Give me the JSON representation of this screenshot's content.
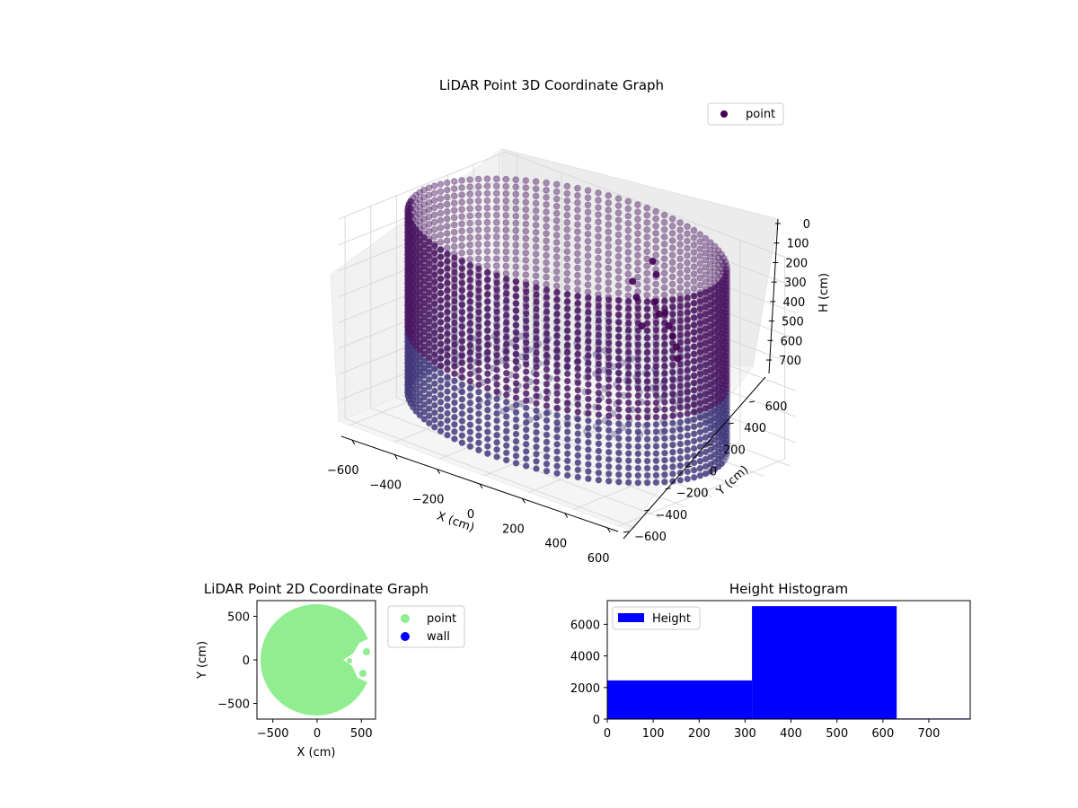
{
  "chart_data": [
    {
      "type": "scatter3d",
      "title": "LiDAR Point 3D Coordinate Graph",
      "xlabel": "X (cm)",
      "ylabel": "Y (cm)",
      "zlabel": "H (cm)",
      "xticks": [
        "−600",
        "−400",
        "−200",
        "0",
        "200",
        "400",
        "600"
      ],
      "yticks": [
        "−600",
        "−400",
        "−200",
        "0",
        "200",
        "400",
        "600"
      ],
      "zticks": [
        "0",
        "100",
        "200",
        "300",
        "400",
        "500",
        "600",
        "700"
      ],
      "xlim": [
        -650,
        650
      ],
      "ylim": [
        -650,
        650
      ],
      "zlim": [
        0,
        780
      ],
      "z_inverted": true,
      "grid": true,
      "legend": {
        "placement": "top-right",
        "entries": [
          {
            "name": "point",
            "color": "#440154"
          }
        ]
      },
      "series": [
        {
          "name": "point",
          "color": "#440154",
          "shape": "cylindrical wall of points",
          "center": [
            0,
            0
          ],
          "radius": 620,
          "z_range": [
            0,
            700
          ]
        }
      ]
    },
    {
      "type": "scatter",
      "title": "LiDAR Point 2D Coordinate Graph",
      "xlabel": "X (cm)",
      "ylabel": "Y (cm)",
      "xticks": [
        "−500",
        "0",
        "500"
      ],
      "yticks": [
        "−500",
        "0",
        "500"
      ],
      "xlim": [
        -680,
        660
      ],
      "ylim": [
        -680,
        680
      ],
      "legend": {
        "placement": "outside-right",
        "entries": [
          {
            "name": "point",
            "color": "#90ee90"
          },
          {
            "name": "wall",
            "color": "#0000ff"
          }
        ]
      },
      "series": [
        {
          "name": "point",
          "color": "#90ee90",
          "shape": "filled disc",
          "center": [
            0,
            0
          ],
          "radius": 640
        },
        {
          "name": "wall",
          "color": "#0000ff",
          "values": []
        }
      ]
    },
    {
      "type": "bar",
      "title": "Height Histogram",
      "xticks": [
        "0",
        "100",
        "200",
        "300",
        "400",
        "500",
        "600",
        "700"
      ],
      "yticks": [
        "0",
        "2000",
        "4000",
        "6000"
      ],
      "xlim": [
        0,
        790
      ],
      "ylim": [
        0,
        7500
      ],
      "legend": {
        "placement": "top-left",
        "entries": [
          {
            "name": "Height",
            "color": "#0000ff"
          }
        ]
      },
      "bins": [
        {
          "start": 0,
          "end": 315,
          "count": 2450
        },
        {
          "start": 315,
          "end": 630,
          "count": 7150
        },
        {
          "start": 630,
          "end": 790,
          "count": 40
        }
      ],
      "color": "#0000ff"
    }
  ]
}
